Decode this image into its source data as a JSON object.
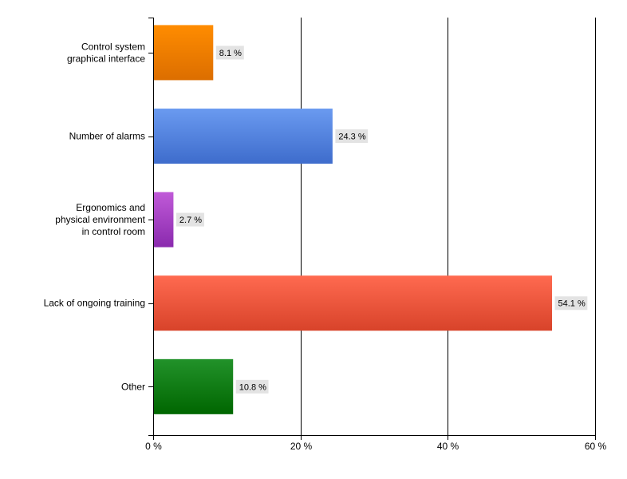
{
  "chart_data": {
    "type": "bar",
    "orientation": "horizontal",
    "title": "",
    "xlabel": "",
    "ylabel": "",
    "categories": [
      "Control system\ngraphical interface",
      "Number of alarms",
      "Ergonomics and\nphysical environment\nin control room",
      "Lack of ongoing training",
      "Other"
    ],
    "values": [
      8.1,
      24.3,
      2.7,
      54.1,
      10.8
    ],
    "data_labels": [
      "8.1 %",
      "24.3 %",
      "2.7 %",
      "54.1 %",
      "10.8 %"
    ],
    "bar_colors": [
      [
        "#ff8c00",
        "#dc6e00"
      ],
      [
        "#6a9af0",
        "#3e6ccc"
      ],
      [
        "#c05ad8",
        "#8a2aae"
      ],
      [
        "#ff6a50",
        "#d8432a"
      ],
      [
        "#22922a",
        "#006600"
      ]
    ],
    "xlim": [
      0,
      60
    ],
    "xticks": [
      0,
      20,
      40,
      60
    ],
    "xtick_labels": [
      "0 %",
      "20 %",
      "40 %",
      "60 %"
    ],
    "grid": true,
    "legend": "none"
  }
}
